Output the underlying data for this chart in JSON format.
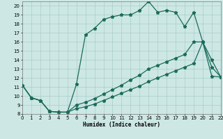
{
  "xlabel": "Humidex (Indice chaleur)",
  "bg_color": "#cde8e4",
  "grid_color": "#a8ccc8",
  "line_color": "#1a6b5a",
  "xlim": [
    0,
    22
  ],
  "ylim": [
    8,
    20.5
  ],
  "xticks": [
    0,
    1,
    2,
    3,
    4,
    5,
    6,
    7,
    8,
    9,
    10,
    11,
    12,
    13,
    14,
    15,
    16,
    17,
    18,
    19,
    20,
    21,
    22
  ],
  "yticks": [
    8,
    9,
    10,
    11,
    12,
    13,
    14,
    15,
    16,
    17,
    18,
    19,
    20
  ],
  "line1_x": [
    0,
    1,
    2,
    3,
    4,
    5,
    6,
    7,
    8,
    9,
    10,
    11,
    12,
    13,
    14,
    15,
    16,
    17,
    18,
    19,
    20,
    21,
    22
  ],
  "line1_y": [
    11.2,
    9.8,
    9.5,
    8.3,
    8.2,
    8.2,
    11.3,
    16.8,
    17.5,
    18.5,
    18.8,
    19.0,
    19.0,
    19.5,
    20.5,
    19.3,
    19.5,
    19.3,
    17.7,
    19.3,
    16.0,
    13.2,
    12.1
  ],
  "line2_x": [
    0,
    1,
    2,
    3,
    4,
    5,
    6,
    7,
    8,
    9,
    10,
    11,
    12,
    13,
    14,
    15,
    16,
    17,
    18,
    19,
    20,
    21,
    22
  ],
  "line2_y": [
    11.2,
    9.8,
    9.5,
    8.3,
    8.2,
    8.2,
    9.0,
    9.3,
    9.7,
    10.2,
    10.7,
    11.2,
    11.8,
    12.3,
    13.0,
    13.4,
    13.8,
    14.2,
    14.6,
    16.0,
    16.0,
    14.0,
    12.1
  ],
  "line3_x": [
    0,
    1,
    2,
    3,
    4,
    5,
    6,
    7,
    8,
    9,
    10,
    11,
    12,
    13,
    14,
    15,
    16,
    17,
    18,
    19,
    20,
    21,
    22
  ],
  "line3_y": [
    11.2,
    9.8,
    9.5,
    8.3,
    8.2,
    8.2,
    8.6,
    8.8,
    9.1,
    9.5,
    9.9,
    10.3,
    10.7,
    11.1,
    11.6,
    12.0,
    12.4,
    12.8,
    13.2,
    13.6,
    16.0,
    12.2,
    12.1
  ]
}
